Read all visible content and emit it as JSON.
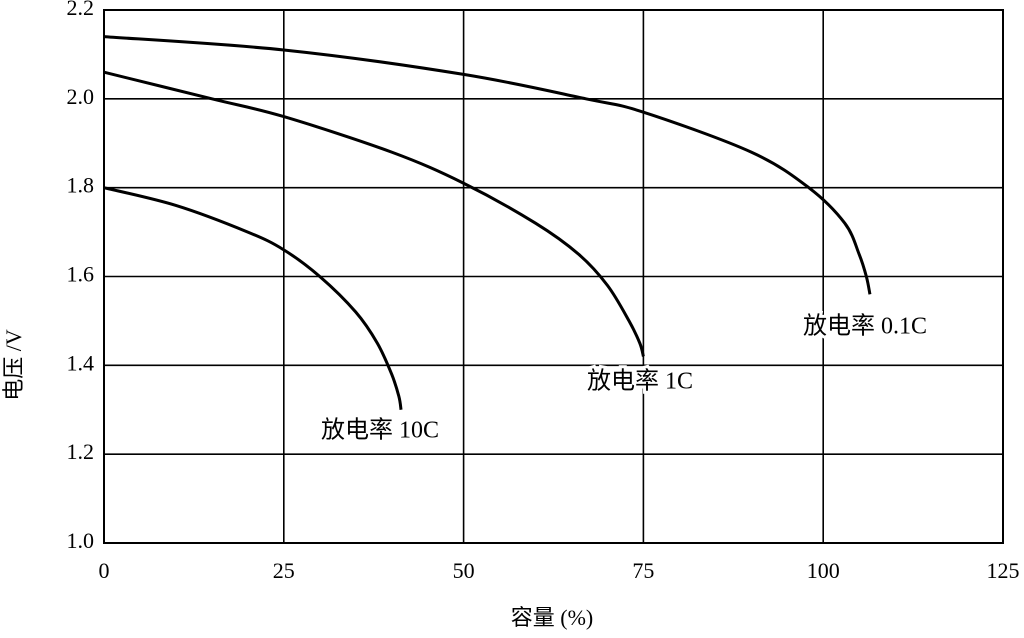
{
  "chart_data": {
    "type": "line",
    "xlabel": "容量 (%)",
    "ylabel": "电压 /V",
    "xlim": [
      0,
      125
    ],
    "xticks": [
      0,
      25,
      50,
      75,
      100,
      125
    ],
    "ylim": [
      1,
      2.2
    ],
    "yticks": [
      {
        "value": 1,
        "label": "1.0"
      },
      1.2,
      1.4,
      1.6,
      1.8,
      {
        "value": 2,
        "label": "2.0"
      },
      2.2
    ],
    "grid": true,
    "series": [
      {
        "name": "放电率 0.1C",
        "color": "#000000",
        "x": [
          0,
          25,
          50,
          67,
          75,
          90,
          98,
          103,
          105,
          106,
          106.5
        ],
        "values": [
          2.14,
          2.11,
          2.055,
          2.0,
          1.97,
          1.88,
          1.8,
          1.72,
          1.65,
          1.6,
          1.56
        ]
      },
      {
        "name": "放电率 1C",
        "color": "#000000",
        "x": [
          0,
          15,
          25,
          40,
          50,
          60,
          66,
          70,
          73,
          74.5,
          75
        ],
        "values": [
          2.06,
          2.0,
          1.96,
          1.88,
          1.81,
          1.72,
          1.65,
          1.58,
          1.5,
          1.45,
          1.42
        ]
      },
      {
        "name": "放电率 10C",
        "color": "#000000",
        "x": [
          0,
          10,
          20,
          25,
          30,
          35,
          38,
          40,
          41,
          41.3
        ],
        "values": [
          1.8,
          1.76,
          1.7,
          1.66,
          1.6,
          1.52,
          1.45,
          1.38,
          1.33,
          1.3
        ]
      }
    ]
  }
}
